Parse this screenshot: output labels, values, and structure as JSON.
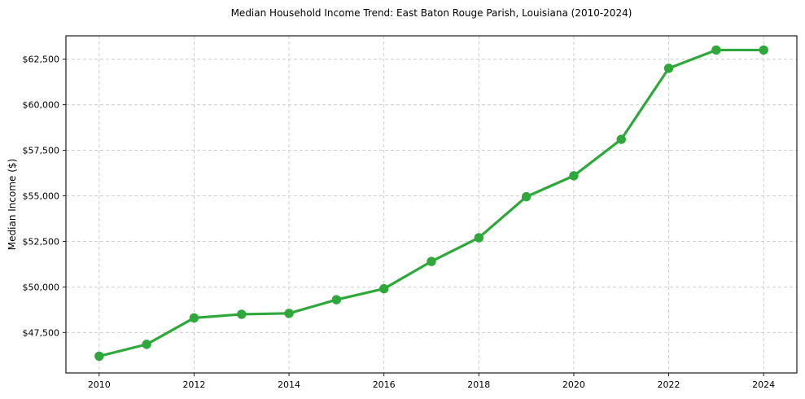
{
  "figure": {
    "title": "Median Household Income Trend: East Baton Rouge Parish, Louisiana (2010-2024)",
    "ylabel": "Median Income ($)"
  },
  "colors": {
    "line": "#2ea83a",
    "grid": "#cdcdcd",
    "frame": "#1a1a1a",
    "background": "#ffffff",
    "text": "#000000"
  },
  "chart_data": {
    "type": "line",
    "title": "Median Household Income Trend: East Baton Rouge Parish, Louisiana (2010-2024)",
    "xlabel": "",
    "ylabel": "Median Income ($)",
    "x": [
      2010,
      2011,
      2012,
      2013,
      2014,
      2015,
      2016,
      2017,
      2018,
      2019,
      2020,
      2021,
      2022,
      2023,
      2024
    ],
    "values": [
      46200,
      46850,
      48300,
      48500,
      48550,
      49300,
      49900,
      51400,
      52700,
      54950,
      56100,
      58100,
      62000,
      63000,
      63000
    ],
    "series_name": "Median household income",
    "xticks": [
      2010,
      2012,
      2014,
      2016,
      2018,
      2020,
      2022,
      2024
    ],
    "yticks": {
      "values": [
        47500,
        50000,
        52500,
        55000,
        57500,
        60000,
        62500
      ],
      "labels": [
        "$47,500",
        "$50,000",
        "$52,500",
        "$55,000",
        "$57,500",
        "$60,000",
        "$62,500"
      ]
    },
    "xlim": [
      2009.3,
      2024.7
    ],
    "ylim": [
      45280,
      63780
    ],
    "grid": true,
    "grid_style": "dashed",
    "legend_position": "none",
    "line_color": "#2ea83a",
    "marker": "circle"
  }
}
